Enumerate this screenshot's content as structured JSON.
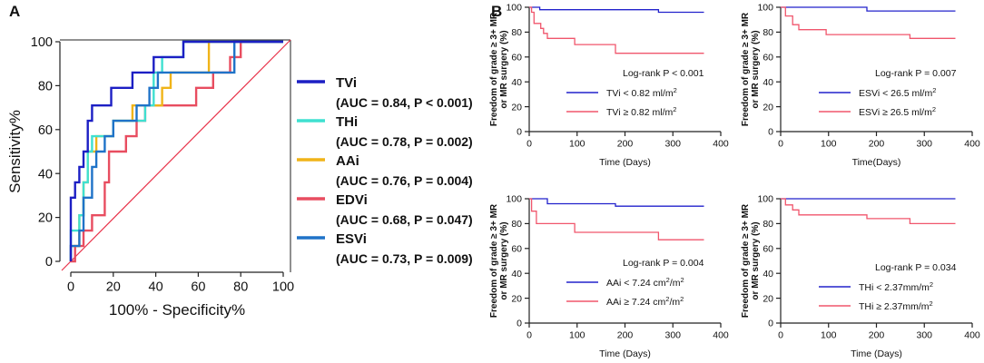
{
  "panel_labels": {
    "a": "A",
    "b": "B"
  },
  "colors": {
    "tvi": "#1c1fc4",
    "thi": "#3fe0d0",
    "aai": "#f0b418",
    "edvi": "#e84d60",
    "esvi": "#1f73c8",
    "low": "#2222cc",
    "high": "#f0566c",
    "diag": "#e8334a"
  },
  "chart_data": [
    {
      "type": "line",
      "id": "roc",
      "title": "",
      "xlabel": "100% - Specificity%",
      "ylabel": "Sensitivity%",
      "xlim": [
        0,
        100
      ],
      "ylim": [
        0,
        100
      ],
      "xticks": [
        0,
        20,
        40,
        60,
        80,
        100
      ],
      "yticks": [
        0,
        20,
        40,
        60,
        80,
        100
      ],
      "reference_line": [
        [
          0,
          0
        ],
        [
          100,
          100
        ]
      ],
      "legend": [
        {
          "name": "TVi",
          "auc": "(AUC = 0.84, P < 0.001)"
        },
        {
          "name": "THi",
          "auc": "(AUC = 0.78, P = 0.002)"
        },
        {
          "name": "AAi",
          "auc": "(AUC = 0.76, P = 0.004)"
        },
        {
          "name": "EDVi",
          "auc": "(AUC = 0.68, P = 0.047)"
        },
        {
          "name": "ESVi",
          "auc": "(AUC = 0.73, P = 0.009)"
        }
      ],
      "series": [
        {
          "name": "TVi",
          "color_key": "tvi",
          "points": [
            [
              0,
              0
            ],
            [
              0,
              14
            ],
            [
              0,
              29
            ],
            [
              2,
              29
            ],
            [
              2,
              36
            ],
            [
              4,
              36
            ],
            [
              4,
              43
            ],
            [
              6,
              43
            ],
            [
              6,
              50
            ],
            [
              8,
              50
            ],
            [
              8,
              64
            ],
            [
              10,
              64
            ],
            [
              10,
              71
            ],
            [
              19,
              71
            ],
            [
              19,
              79
            ],
            [
              29,
              79
            ],
            [
              29,
              86
            ],
            [
              39,
              86
            ],
            [
              39,
              93
            ],
            [
              53,
              93
            ],
            [
              53,
              100
            ],
            [
              100,
              100
            ]
          ]
        },
        {
          "name": "THi",
          "color_key": "thi",
          "points": [
            [
              0,
              0
            ],
            [
              0,
              14
            ],
            [
              4,
              14
            ],
            [
              4,
              21
            ],
            [
              6,
              21
            ],
            [
              6,
              36
            ],
            [
              8,
              36
            ],
            [
              8,
              50
            ],
            [
              10,
              50
            ],
            [
              10,
              57
            ],
            [
              20,
              57
            ],
            [
              20,
              64
            ],
            [
              35,
              64
            ],
            [
              35,
              71
            ],
            [
              39,
              71
            ],
            [
              39,
              86
            ],
            [
              43,
              86
            ],
            [
              43,
              93
            ],
            [
              53,
              93
            ],
            [
              53,
              100
            ],
            [
              100,
              100
            ]
          ]
        },
        {
          "name": "AAi",
          "color_key": "aai",
          "points": [
            [
              0,
              0
            ],
            [
              0,
              7
            ],
            [
              4,
              7
            ],
            [
              4,
              21
            ],
            [
              6,
              21
            ],
            [
              6,
              36
            ],
            [
              8,
              36
            ],
            [
              8,
              50
            ],
            [
              12,
              50
            ],
            [
              12,
              57
            ],
            [
              20,
              57
            ],
            [
              20,
              64
            ],
            [
              29,
              64
            ],
            [
              29,
              71
            ],
            [
              43,
              71
            ],
            [
              43,
              79
            ],
            [
              47,
              79
            ],
            [
              47,
              86
            ],
            [
              65,
              86
            ],
            [
              65,
              100
            ],
            [
              100,
              100
            ]
          ]
        },
        {
          "name": "EDVi",
          "color_key": "edvi",
          "points": [
            [
              0,
              0
            ],
            [
              2,
              0
            ],
            [
              2,
              7
            ],
            [
              6,
              7
            ],
            [
              6,
              14
            ],
            [
              10,
              14
            ],
            [
              10,
              21
            ],
            [
              16,
              21
            ],
            [
              16,
              36
            ],
            [
              18,
              36
            ],
            [
              18,
              50
            ],
            [
              26,
              50
            ],
            [
              26,
              57
            ],
            [
              31,
              57
            ],
            [
              31,
              64
            ],
            [
              35,
              64
            ],
            [
              35,
              71
            ],
            [
              59,
              71
            ],
            [
              59,
              79
            ],
            [
              67,
              79
            ],
            [
              67,
              86
            ],
            [
              75,
              86
            ],
            [
              75,
              93
            ],
            [
              80,
              93
            ],
            [
              80,
              100
            ],
            [
              100,
              100
            ]
          ]
        },
        {
          "name": "ESVi",
          "color_key": "esvi",
          "points": [
            [
              0,
              0
            ],
            [
              0,
              7
            ],
            [
              4,
              7
            ],
            [
              4,
              14
            ],
            [
              6,
              14
            ],
            [
              6,
              29
            ],
            [
              10,
              29
            ],
            [
              10,
              43
            ],
            [
              12,
              43
            ],
            [
              12,
              50
            ],
            [
              16,
              50
            ],
            [
              16,
              57
            ],
            [
              20,
              57
            ],
            [
              20,
              64
            ],
            [
              31,
              64
            ],
            [
              31,
              71
            ],
            [
              37,
              71
            ],
            [
              37,
              79
            ],
            [
              41,
              79
            ],
            [
              41,
              86
            ],
            [
              77,
              86
            ],
            [
              77,
              100
            ],
            [
              100,
              100
            ]
          ]
        }
      ]
    },
    {
      "type": "line",
      "id": "km1",
      "ylabel": [
        "Freedom of grade ≥ 3+ MR",
        "or MR surgery (%)"
      ],
      "xlabel": "Time (Days)",
      "xlim": [
        0,
        400
      ],
      "ylim": [
        0,
        100
      ],
      "xticks": [
        0,
        100,
        200,
        300,
        400
      ],
      "yticks": [
        0,
        20,
        40,
        60,
        80,
        100
      ],
      "logrank": "Log-rank P < 0.001",
      "legend": [
        {
          "name": "TVi",
          "rel": "<",
          "val": "0.82 ml/m",
          "sup": "2",
          "color_key": "low"
        },
        {
          "name": "TVi",
          "rel": "≥",
          "val": "0.82 ml/m",
          "sup": "2",
          "color_key": "high"
        }
      ],
      "series": [
        {
          "name": "TVi < 0.82 ml/m2",
          "color_key": "low",
          "points": [
            [
              0,
              100
            ],
            [
              22,
              100
            ],
            [
              22,
              98
            ],
            [
              270,
              98
            ],
            [
              270,
              96
            ],
            [
              365,
              96
            ]
          ]
        },
        {
          "name": "TVi ≥ 0.82 ml/m2",
          "color_key": "high",
          "points": [
            [
              0,
              100
            ],
            [
              5,
              100
            ],
            [
              5,
              96
            ],
            [
              10,
              96
            ],
            [
              10,
              87
            ],
            [
              24,
              87
            ],
            [
              24,
              83
            ],
            [
              30,
              83
            ],
            [
              30,
              79
            ],
            [
              38,
              79
            ],
            [
              38,
              75
            ],
            [
              95,
              75
            ],
            [
              95,
              70
            ],
            [
              180,
              70
            ],
            [
              180,
              63
            ],
            [
              365,
              63
            ]
          ]
        }
      ]
    },
    {
      "type": "line",
      "id": "km2",
      "ylabel": [
        "Freedom of grade ≥ 3+ MR",
        "or MR surgery (%)"
      ],
      "xlabel": "Time(Days)",
      "xlim": [
        0,
        400
      ],
      "ylim": [
        0,
        100
      ],
      "xticks": [
        0,
        100,
        200,
        300,
        400
      ],
      "yticks": [
        0,
        20,
        40,
        60,
        80,
        100
      ],
      "logrank": "Log-rank P = 0.007",
      "legend": [
        {
          "name": "ESVi",
          "rel": "<",
          "val": "26.5 ml/m",
          "sup": "2",
          "color_key": "low"
        },
        {
          "name": "ESVi",
          "rel": "≥",
          "val": "26.5 ml/m",
          "sup": "2",
          "color_key": "high"
        }
      ],
      "series": [
        {
          "name": "ESVi < 26.5 ml/m2",
          "color_key": "low",
          "points": [
            [
              0,
              100
            ],
            [
              180,
              100
            ],
            [
              180,
              97
            ],
            [
              365,
              97
            ]
          ]
        },
        {
          "name": "ESVi ≥ 26.5 ml/m2",
          "color_key": "high",
          "points": [
            [
              0,
              100
            ],
            [
              10,
              100
            ],
            [
              10,
              93
            ],
            [
              25,
              93
            ],
            [
              25,
              86
            ],
            [
              38,
              86
            ],
            [
              38,
              82
            ],
            [
              95,
              82
            ],
            [
              95,
              78
            ],
            [
              270,
              78
            ],
            [
              270,
              75
            ],
            [
              365,
              75
            ]
          ]
        }
      ]
    },
    {
      "type": "line",
      "id": "km3",
      "ylabel": [
        "Freedom of grade ≥ 3+ MR",
        "or MR surgery (%)"
      ],
      "xlabel": "Time (Days)",
      "xlim": [
        0,
        400
      ],
      "ylim": [
        0,
        100
      ],
      "xticks": [
        0,
        100,
        200,
        300,
        400
      ],
      "yticks": [
        0,
        20,
        40,
        60,
        80,
        100
      ],
      "logrank": "Log-rank P = 0.004",
      "legend": [
        {
          "name": "AAi",
          "rel": "<",
          "val": "7.24  cm",
          "sup": "2",
          "tail": "/m",
          "sup2": "2",
          "color_key": "low"
        },
        {
          "name": "AAi",
          "rel": "≥",
          "val": "7.24  cm",
          "sup": "2",
          "tail": "/m",
          "sup2": "2",
          "color_key": "high"
        }
      ],
      "series": [
        {
          "name": "AAi < 7.24 cm2/m2",
          "color_key": "low",
          "points": [
            [
              0,
              100
            ],
            [
              38,
              100
            ],
            [
              38,
              96
            ],
            [
              180,
              96
            ],
            [
              180,
              94
            ],
            [
              365,
              94
            ]
          ]
        },
        {
          "name": "AAi ≥ 7.24 cm2/m2",
          "color_key": "high",
          "points": [
            [
              0,
              100
            ],
            [
              5,
              100
            ],
            [
              5,
              90
            ],
            [
              15,
              90
            ],
            [
              15,
              80
            ],
            [
              95,
              80
            ],
            [
              95,
              73
            ],
            [
              270,
              73
            ],
            [
              270,
              67
            ],
            [
              365,
              67
            ]
          ]
        }
      ]
    },
    {
      "type": "line",
      "id": "km4",
      "ylabel": [
        "Freedom of grade ≥ 3+ MR",
        "or MR surgery (%)"
      ],
      "xlabel": "Time (Days)",
      "xlim": [
        0,
        400
      ],
      "ylim": [
        0,
        100
      ],
      "xticks": [
        0,
        100,
        200,
        300,
        400
      ],
      "yticks": [
        0,
        20,
        40,
        60,
        80,
        100
      ],
      "logrank": "Log-rank P = 0.034",
      "legend": [
        {
          "name": "THi",
          "rel": "<",
          "val": "2.37mm/m",
          "sup": "2",
          "color_key": "low"
        },
        {
          "name": "THi",
          "rel": "≥",
          "val": "2.37mm/m",
          "sup": "2",
          "color_key": "high"
        }
      ],
      "series": [
        {
          "name": "THi < 2.37mm/m2",
          "color_key": "low",
          "points": [
            [
              0,
              100
            ],
            [
              365,
              100
            ]
          ]
        },
        {
          "name": "THi ≥ 2.37mm/m2",
          "color_key": "high",
          "points": [
            [
              0,
              100
            ],
            [
              10,
              100
            ],
            [
              10,
              95
            ],
            [
              25,
              95
            ],
            [
              25,
              91
            ],
            [
              38,
              91
            ],
            [
              38,
              87
            ],
            [
              180,
              87
            ],
            [
              180,
              84
            ],
            [
              270,
              84
            ],
            [
              270,
              80
            ],
            [
              365,
              80
            ]
          ]
        }
      ]
    }
  ]
}
